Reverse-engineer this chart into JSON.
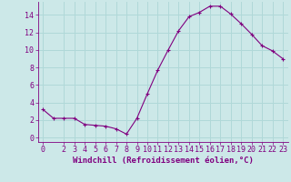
{
  "x": [
    0,
    1,
    2,
    3,
    4,
    5,
    6,
    7,
    8,
    9,
    10,
    11,
    12,
    13,
    14,
    15,
    16,
    17,
    18,
    19,
    20,
    21,
    22,
    23
  ],
  "y": [
    3.2,
    2.2,
    2.2,
    2.2,
    1.5,
    1.4,
    1.3,
    1.0,
    0.4,
    2.2,
    5.0,
    7.7,
    10.0,
    12.2,
    13.8,
    14.3,
    15.0,
    15.0,
    14.1,
    13.0,
    11.8,
    10.5,
    9.9,
    9.0
  ],
  "line_color": "#800080",
  "marker": "+",
  "marker_color": "#800080",
  "bg_color": "#cce8e8",
  "grid_color": "#b0d8d8",
  "xlabel": "Windchill (Refroidissement éolien,°C)",
  "xlabel_color": "#800080",
  "tick_color": "#800080",
  "axis_color": "#800080",
  "ylim": [
    -0.5,
    15.5
  ],
  "xlim": [
    -0.5,
    23.5
  ],
  "yticks": [
    0,
    2,
    4,
    6,
    8,
    10,
    12,
    14
  ],
  "xticks": [
    0,
    2,
    3,
    4,
    5,
    6,
    7,
    8,
    9,
    10,
    11,
    12,
    13,
    14,
    15,
    16,
    17,
    18,
    19,
    20,
    21,
    22,
    23
  ],
  "xtick_labels": [
    "0",
    "2",
    "3",
    "4",
    "5",
    "6",
    "7",
    "8",
    "9",
    "10",
    "11",
    "12",
    "13",
    "14",
    "15",
    "16",
    "17",
    "18",
    "19",
    "20",
    "21",
    "22",
    "23"
  ],
  "xlabel_fontsize": 6.5,
  "tick_fontsize": 6.0,
  "linewidth": 0.8,
  "markersize": 3.5
}
